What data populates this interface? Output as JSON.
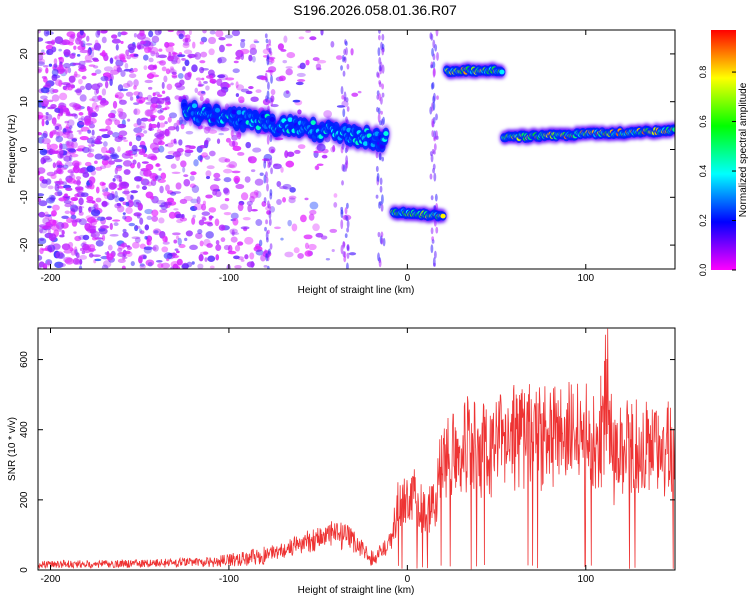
{
  "title": "S196.2026.058.01.36.R07",
  "chart_data": [
    {
      "type": "heatmap",
      "title": "S196.2026.058.01.36.R07",
      "xlabel": "Height of straight line (km)",
      "ylabel": "Frequency (Hz)",
      "xlim": [
        -207,
        150
      ],
      "ylim": [
        -25,
        25
      ],
      "xticks": [
        -200,
        -100,
        0,
        100
      ],
      "yticks": [
        -20,
        -10,
        0,
        10,
        20
      ],
      "colorbar": {
        "label": "Normalized spectral amplitude",
        "range": [
          0,
          0.97
        ],
        "ticks": [
          "0.0",
          "0.2",
          "0.4",
          "0.6",
          "0.8"
        ],
        "tick_values": [
          0,
          0.2,
          0.4,
          0.6,
          0.8
        ],
        "colormap": [
          "#ff00ff",
          "#0000ff",
          "#00ffff",
          "#00ff00",
          "#ffff00",
          "#ff0000"
        ]
      },
      "ridge": [
        {
          "x_start": -125,
          "x_end": -12,
          "freq_start": 8,
          "freq_end": 2,
          "peak_amplitude": 0.45
        },
        {
          "x_start": -8,
          "x_end": 20,
          "freq_start": -13,
          "freq_end": -14,
          "peak_amplitude": 0.8
        },
        {
          "x_start": 22,
          "x_end": 53,
          "freq_start": 16.5,
          "freq_end": 16.5,
          "peak_amplitude": 0.9
        },
        {
          "x_start": 54,
          "x_end": 150,
          "freq_start": 2.5,
          "freq_end": 4,
          "peak_amplitude": 0.9
        }
      ]
    },
    {
      "type": "line",
      "xlabel": "Height of straight line (km)",
      "ylabel": "SNR (10 * v/v)",
      "xlim": [
        -207,
        150
      ],
      "ylim": [
        0,
        690
      ],
      "xticks": [
        -200,
        -100,
        0,
        100
      ],
      "yticks": [
        0,
        200,
        400,
        600
      ],
      "color": "#ee3333",
      "series": [
        {
          "name": "SNR",
          "x": [
            -207,
            -190,
            -170,
            -150,
            -130,
            -110,
            -90,
            -70,
            -60,
            -50,
            -40,
            -30,
            -20,
            -10,
            -5,
            0,
            5,
            10,
            15,
            20,
            30,
            40,
            50,
            60,
            70,
            80,
            90,
            100,
            110,
            112,
            115,
            120,
            130,
            140,
            150
          ],
          "values": [
            20,
            20,
            20,
            22,
            24,
            26,
            40,
            60,
            80,
            100,
            110,
            90,
            40,
            80,
            200,
            240,
            220,
            170,
            200,
            340,
            400,
            360,
            380,
            410,
            420,
            400,
            420,
            410,
            430,
            660,
            320,
            380,
            380,
            360,
            380
          ]
        }
      ]
    }
  ]
}
